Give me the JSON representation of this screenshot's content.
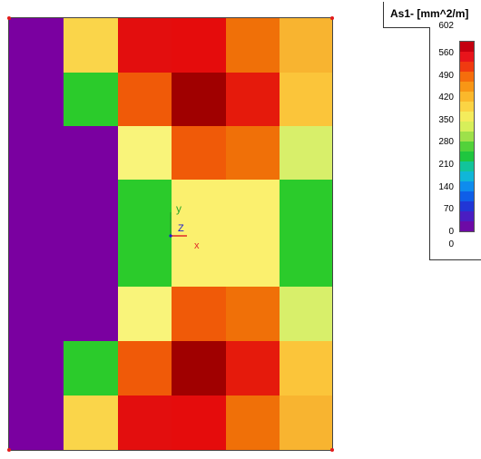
{
  "plot": {
    "grid_colors": [
      [
        "#7a00a0",
        "#fad54a",
        "#e30e0e",
        "#e50c0c",
        "#f07008",
        "#f8b430"
      ],
      [
        "#7a00a0",
        "#2bcb2b",
        "#f05a08",
        "#a00000",
        "#e51a0c",
        "#fbc53a"
      ],
      [
        "#7a00a0",
        "#7a00a0",
        "#f9f47a",
        "#f05a08",
        "#f07008",
        "#d8ef6a"
      ],
      [
        "#7a00a0",
        "#7a00a0",
        "#2bcb2b",
        "#fbf06e",
        "#fbf06e",
        "#2bcb2b"
      ],
      [
        "#7a00a0",
        "#7a00a0",
        "#2bcb2b",
        "#fbf06e",
        "#fbf06e",
        "#2bcb2b"
      ],
      [
        "#7a00a0",
        "#7a00a0",
        "#f9f47a",
        "#f05a08",
        "#f07008",
        "#d8ef6a"
      ],
      [
        "#7a00a0",
        "#2bcb2b",
        "#f05a08",
        "#a00000",
        "#e51a0c",
        "#fbc53a"
      ],
      [
        "#7a00a0",
        "#fad54a",
        "#e30e0e",
        "#e50c0c",
        "#f07008",
        "#f8b430"
      ]
    ],
    "axes": {
      "y": "y",
      "z": "Z",
      "x": "x"
    }
  },
  "legend": {
    "title": "As1- [mm^2/m]",
    "max_label": "602",
    "min_label": "0",
    "ticks": [
      "560",
      "490",
      "420",
      "350",
      "280",
      "210",
      "140",
      "70",
      "0"
    ],
    "colors": [
      "#c4000f",
      "#e8141b",
      "#f03a10",
      "#f56d0c",
      "#f89615",
      "#fbb82b",
      "#fbd444",
      "#f4ec5c",
      "#d7ef5a",
      "#9ee14a",
      "#52d23a",
      "#1fc63f",
      "#12c49a",
      "#10b6d8",
      "#0e8cee",
      "#0f5ee8",
      "#2136d6",
      "#4a1dc2",
      "#6d0aa6"
    ]
  }
}
